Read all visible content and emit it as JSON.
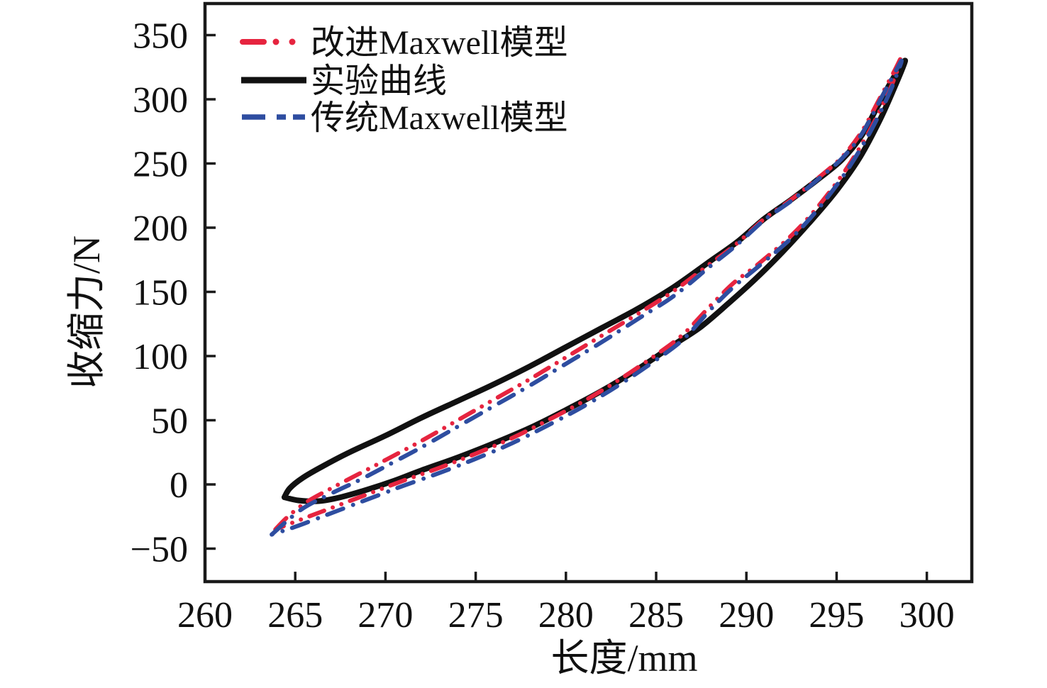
{
  "figure": {
    "background": "#ffffff",
    "border_color": "#1a1a1a"
  },
  "chart_data": {
    "type": "line",
    "title": "",
    "xlabel": "长度/mm",
    "ylabel": "收缩力/N",
    "xlim": [
      260,
      302.5
    ],
    "ylim": [
      -76,
      376
    ],
    "x_ticks": [
      260,
      265,
      270,
      275,
      280,
      285,
      290,
      295,
      300
    ],
    "y_ticks": [
      -50,
      0,
      50,
      100,
      150,
      200,
      250,
      300,
      350
    ],
    "grid": false,
    "legend_position": "top-left",
    "legend": [
      {
        "label": "改进Maxwell模型",
        "style": "dash-dot-dot",
        "color": "#e6243f"
      },
      {
        "label": "实验曲线",
        "style": "solid",
        "color": "#111111"
      },
      {
        "label": "传统Maxwell模型",
        "style": "dash-dot",
        "color": "#2e4da0"
      }
    ],
    "series": [
      {
        "name": "实验曲线",
        "color": "#111111",
        "style": "solid",
        "stroke_width": 8,
        "upper": [
          [
            264.4,
            -10
          ],
          [
            264.7,
            -3
          ],
          [
            265.4,
            5
          ],
          [
            266.5,
            14
          ],
          [
            268,
            25
          ],
          [
            270,
            38
          ],
          [
            272,
            52
          ],
          [
            274,
            65
          ],
          [
            276,
            78
          ],
          [
            278,
            92
          ],
          [
            280,
            107
          ],
          [
            282,
            122
          ],
          [
            284,
            137
          ],
          [
            286,
            154
          ],
          [
            288,
            174
          ],
          [
            289.5,
            189
          ],
          [
            291,
            207
          ],
          [
            292.5,
            222
          ],
          [
            294,
            238
          ],
          [
            295.3,
            253
          ],
          [
            296.4,
            272
          ],
          [
            297.4,
            298
          ],
          [
            298.2,
            318
          ],
          [
            298.8,
            330
          ]
        ],
        "lower": [
          [
            264.4,
            -10
          ],
          [
            265.2,
            -12.5
          ],
          [
            266.3,
            -13
          ],
          [
            267.5,
            -10
          ],
          [
            269,
            -4
          ],
          [
            270.5,
            3
          ],
          [
            272,
            11
          ],
          [
            274,
            21
          ],
          [
            276,
            32
          ],
          [
            278,
            44
          ],
          [
            280,
            58
          ],
          [
            282,
            73
          ],
          [
            284,
            90
          ],
          [
            286,
            109
          ],
          [
            287.5,
            123
          ],
          [
            289,
            141
          ],
          [
            290.5,
            160
          ],
          [
            292,
            181
          ],
          [
            293.5,
            204
          ],
          [
            295,
            229
          ],
          [
            296.3,
            255
          ],
          [
            297.4,
            284
          ],
          [
            298.2,
            309
          ],
          [
            298.8,
            330
          ]
        ]
      },
      {
        "name": "改进Maxwell模型",
        "color": "#e6243f",
        "style": "dash-dot-dot",
        "stroke_width": 6,
        "upper": [
          [
            263.9,
            -35
          ],
          [
            264.6,
            -25
          ],
          [
            265.6,
            -14
          ],
          [
            267,
            -3
          ],
          [
            268.5,
            8
          ],
          [
            270,
            19
          ],
          [
            272,
            34
          ],
          [
            274,
            50
          ],
          [
            276,
            66
          ],
          [
            278,
            82
          ],
          [
            280,
            99
          ],
          [
            282,
            116
          ],
          [
            284,
            133
          ],
          [
            286,
            151
          ],
          [
            288,
            172
          ],
          [
            289.5,
            188
          ],
          [
            291,
            207
          ],
          [
            292.5,
            222
          ],
          [
            294,
            239
          ],
          [
            295.3,
            255
          ],
          [
            296.4,
            275
          ],
          [
            297.4,
            301
          ],
          [
            298.2,
            322
          ],
          [
            298.6,
            333
          ]
        ],
        "lower": [
          [
            263.9,
            -35
          ],
          [
            265,
            -29
          ],
          [
            266.5,
            -21
          ],
          [
            268,
            -13
          ],
          [
            269.5,
            -5
          ],
          [
            271,
            3
          ],
          [
            273,
            13
          ],
          [
            275,
            24
          ],
          [
            277,
            36
          ],
          [
            279,
            50
          ],
          [
            281,
            65
          ],
          [
            283,
            82
          ],
          [
            285,
            101
          ],
          [
            286.5,
            117
          ],
          [
            288,
            139
          ],
          [
            289.3,
            157
          ],
          [
            290.6,
            171
          ],
          [
            292.5,
            194
          ],
          [
            294,
            217
          ],
          [
            295.5,
            245
          ],
          [
            296.8,
            275
          ],
          [
            297.8,
            303
          ],
          [
            298.3,
            320
          ],
          [
            298.6,
            333
          ]
        ]
      },
      {
        "name": "传统Maxwell模型",
        "color": "#2e4da0",
        "style": "dash-dot",
        "stroke_width": 6,
        "upper": [
          [
            263.7,
            -39
          ],
          [
            264.5,
            -29
          ],
          [
            265.5,
            -18
          ],
          [
            267,
            -7
          ],
          [
            268.5,
            3
          ],
          [
            270,
            14
          ],
          [
            272,
            29
          ],
          [
            274,
            45
          ],
          [
            276,
            61
          ],
          [
            278,
            77
          ],
          [
            280,
            94
          ],
          [
            282,
            111
          ],
          [
            284,
            129
          ],
          [
            286,
            147
          ],
          [
            288,
            170
          ],
          [
            289.5,
            187
          ],
          [
            291,
            206
          ],
          [
            292.5,
            221
          ],
          [
            294,
            238
          ],
          [
            295.3,
            254
          ],
          [
            296.4,
            273
          ],
          [
            297.4,
            299
          ],
          [
            298.2,
            320
          ],
          [
            298.6,
            330
          ]
        ],
        "lower": [
          [
            263.7,
            -39
          ],
          [
            265,
            -33
          ],
          [
            266.5,
            -25
          ],
          [
            268,
            -17
          ],
          [
            269.5,
            -9
          ],
          [
            271,
            -1
          ],
          [
            273,
            9
          ],
          [
            275,
            20
          ],
          [
            277,
            32
          ],
          [
            279,
            46
          ],
          [
            281,
            61
          ],
          [
            283,
            78
          ],
          [
            285,
            97
          ],
          [
            286.5,
            113
          ],
          [
            288,
            136
          ],
          [
            289.3,
            154
          ],
          [
            290.6,
            169
          ],
          [
            292.5,
            192
          ],
          [
            294,
            215
          ],
          [
            295.5,
            243
          ],
          [
            296.8,
            273
          ],
          [
            297.8,
            301
          ],
          [
            298.3,
            318
          ],
          [
            298.6,
            330
          ]
        ]
      }
    ]
  }
}
